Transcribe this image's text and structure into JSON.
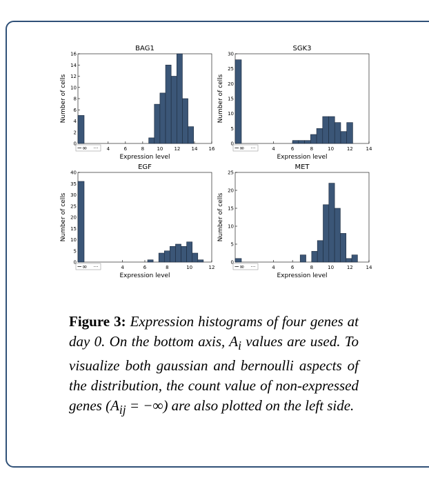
{
  "chart_data": [
    {
      "type": "histogram",
      "title": "BAG1",
      "xlabel": "Expression level",
      "ylabel": "Number of cells",
      "color": "#3b5677",
      "inf_label": "−∞",
      "break_label": "···",
      "inf_count": 5,
      "bins": [
        8.7,
        9.35,
        10.0,
        10.65,
        11.3,
        11.95,
        12.6,
        13.25,
        13.9
      ],
      "counts": [
        1,
        7,
        9,
        14,
        12,
        16,
        8,
        3
      ],
      "xlim": [
        0.5,
        16
      ],
      "xticks": [
        4,
        6,
        8,
        10,
        12,
        14,
        16
      ],
      "ylim": [
        0,
        16
      ],
      "yticks": [
        0,
        2,
        4,
        6,
        8,
        10,
        12,
        14,
        16
      ]
    },
    {
      "type": "histogram",
      "title": "SGK3",
      "xlabel": "Expression level",
      "ylabel": "Number of cells",
      "color": "#3b5677",
      "inf_label": "−∞",
      "break_label": "···",
      "inf_count": 28,
      "bins": [
        6.0,
        6.63,
        7.26,
        7.89,
        8.52,
        9.15,
        9.78,
        10.41,
        11.04,
        11.67,
        12.3
      ],
      "counts": [
        1,
        1,
        1,
        3,
        5,
        9,
        9,
        7,
        4,
        7
      ],
      "xlim": [
        0,
        14
      ],
      "xticks": [
        4,
        6,
        8,
        10,
        12,
        14
      ],
      "ylim": [
        0,
        30
      ],
      "yticks": [
        0,
        5,
        10,
        15,
        20,
        25,
        30
      ]
    },
    {
      "type": "histogram",
      "title": "EGF",
      "xlabel": "Expression level",
      "ylabel": "Number of cells",
      "color": "#3b5677",
      "inf_label": "−∞",
      "break_label": "···",
      "inf_count": 36,
      "bins": [
        6.25,
        6.75,
        7.25,
        7.75,
        8.25,
        8.75,
        9.25,
        9.75,
        10.25,
        10.75,
        11.25
      ],
      "counts": [
        1,
        0,
        4,
        5,
        7,
        8,
        7,
        9,
        4,
        1
      ],
      "xlim": [
        0,
        12
      ],
      "xticks": [
        4,
        6,
        8,
        10,
        12
      ],
      "ylim": [
        0,
        40
      ],
      "yticks": [
        0,
        5,
        10,
        15,
        20,
        25,
        30,
        35,
        40
      ]
    },
    {
      "type": "histogram",
      "title": "MET",
      "xlabel": "Expression level",
      "ylabel": "Number of cells",
      "color": "#3b5677",
      "inf_label": "−∞",
      "break_label": "···",
      "inf_count": 1,
      "bins": [
        6.8,
        7.4,
        8.0,
        8.6,
        9.2,
        9.8,
        10.4,
        11.0,
        11.6,
        12.2,
        12.8,
        13.4
      ],
      "counts": [
        2,
        0,
        3,
        6,
        16,
        22,
        15,
        8,
        1,
        2,
        0
      ],
      "xlim": [
        0,
        14
      ],
      "xticks": [
        4,
        6,
        8,
        10,
        12,
        14
      ],
      "ylim": [
        0,
        25
      ],
      "yticks": [
        0,
        5,
        10,
        15,
        20,
        25
      ]
    }
  ],
  "caption": {
    "label": "Figure 3:",
    "parts": [
      "Expression histograms of four genes at day 0. On the bottom axis, ",
      "A",
      "i",
      " values are used. To visualize both gaussian and bernoulli aspects of the distribution, the count value of non-expressed genes (",
      "A",
      "ij",
      " = −∞) are also plotted on the left side."
    ]
  }
}
